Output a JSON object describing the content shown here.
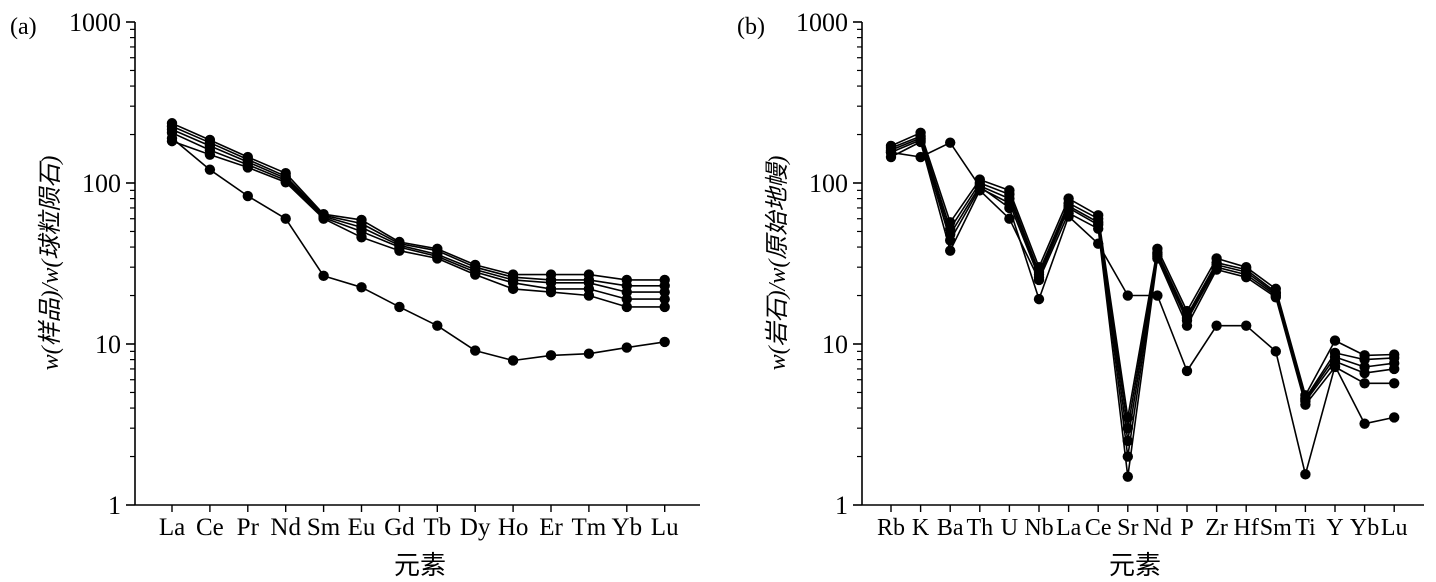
{
  "chart_data": [
    {
      "panel_label": "(a)",
      "type": "line",
      "xlabel": "元素",
      "ylabel": "w(样品)/w(球粒陨石)",
      "yscale": "log",
      "ylim": [
        1,
        1000
      ],
      "yticks": [
        "1",
        "10",
        "100",
        "1000"
      ],
      "categories": [
        "La",
        "Ce",
        "Pr",
        "Nd",
        "Sm",
        "Eu",
        "Gd",
        "Tb",
        "Dy",
        "Ho",
        "Er",
        "Tm",
        "Yb",
        "Lu"
      ],
      "grid": false,
      "legend": "none",
      "marker": "filled-circle",
      "line_color": "#000000",
      "series": [
        {
          "values": [
            235,
            185,
            145,
            115,
            64,
            59,
            43,
            39,
            31,
            27,
            27,
            27,
            25,
            25
          ]
        },
        {
          "values": [
            225,
            178,
            140,
            110,
            63,
            56,
            42,
            38,
            30,
            26,
            25,
            25,
            23,
            23
          ]
        },
        {
          "values": [
            215,
            170,
            135,
            107,
            62,
            53,
            41,
            36,
            29,
            25,
            24,
            24,
            21,
            21
          ]
        },
        {
          "values": [
            205,
            160,
            130,
            104,
            61,
            50,
            40,
            35,
            28,
            24,
            22,
            22,
            19,
            19
          ]
        },
        {
          "values": [
            182,
            150,
            125,
            101,
            60,
            46,
            38,
            34,
            27,
            22,
            21,
            20,
            17,
            17
          ]
        },
        {
          "values": [
            190,
            121,
            83,
            60,
            26.5,
            22.5,
            17,
            13,
            9.1,
            7.9,
            8.5,
            8.7,
            9.5,
            10.3
          ]
        }
      ]
    },
    {
      "panel_label": "(b)",
      "type": "line",
      "xlabel": "元素",
      "ylabel": "w(岩石)/w(原始地幔)",
      "yscale": "log",
      "ylim": [
        1,
        1000
      ],
      "yticks": [
        "1",
        "10",
        "100",
        "1000"
      ],
      "categories": [
        "Rb",
        "K",
        "Ba",
        "Th",
        "U",
        "Nb",
        "La",
        "Ce",
        "Sr",
        "Nd",
        "P",
        "Zr",
        "Hf",
        "Sm",
        "Ti",
        "Y",
        "Yb",
        "Lu"
      ],
      "grid": false,
      "legend": "none",
      "marker": "filled-circle",
      "line_color": "#000000",
      "series": [
        {
          "values": [
            170,
            205,
            57,
            105,
            90,
            30,
            80,
            63,
            3.5,
            39,
            16,
            34,
            30,
            22,
            4.8,
            10.5,
            8.5,
            8.6
          ]
        },
        {
          "values": [
            165,
            195,
            52,
            100,
            85,
            28,
            75,
            60,
            3.0,
            37,
            15,
            32,
            29,
            21,
            4.6,
            8.8,
            8.0,
            8.2
          ]
        },
        {
          "values": [
            160,
            190,
            48,
            96,
            80,
            27,
            72,
            57,
            2.5,
            36,
            14.5,
            31,
            28,
            20.5,
            4.5,
            8.3,
            7.2,
            7.6
          ]
        },
        {
          "values": [
            155,
            185,
            44,
            93,
            75,
            26,
            70,
            55,
            2.0,
            35,
            14,
            30,
            27,
            20,
            4.4,
            7.8,
            6.6,
            7.0
          ]
        },
        {
          "values": [
            145,
            180,
            38,
            90,
            60,
            25,
            65,
            52,
            1.5,
            34,
            13,
            29,
            26,
            19.5,
            4.2,
            7.2,
            5.7,
            5.7
          ]
        },
        {
          "values": [
            155,
            145,
            178,
            95,
            70,
            19,
            62,
            42,
            20,
            20,
            6.8,
            13,
            13,
            9,
            1.55,
            7.3,
            3.2,
            3.5
          ]
        }
      ]
    }
  ]
}
